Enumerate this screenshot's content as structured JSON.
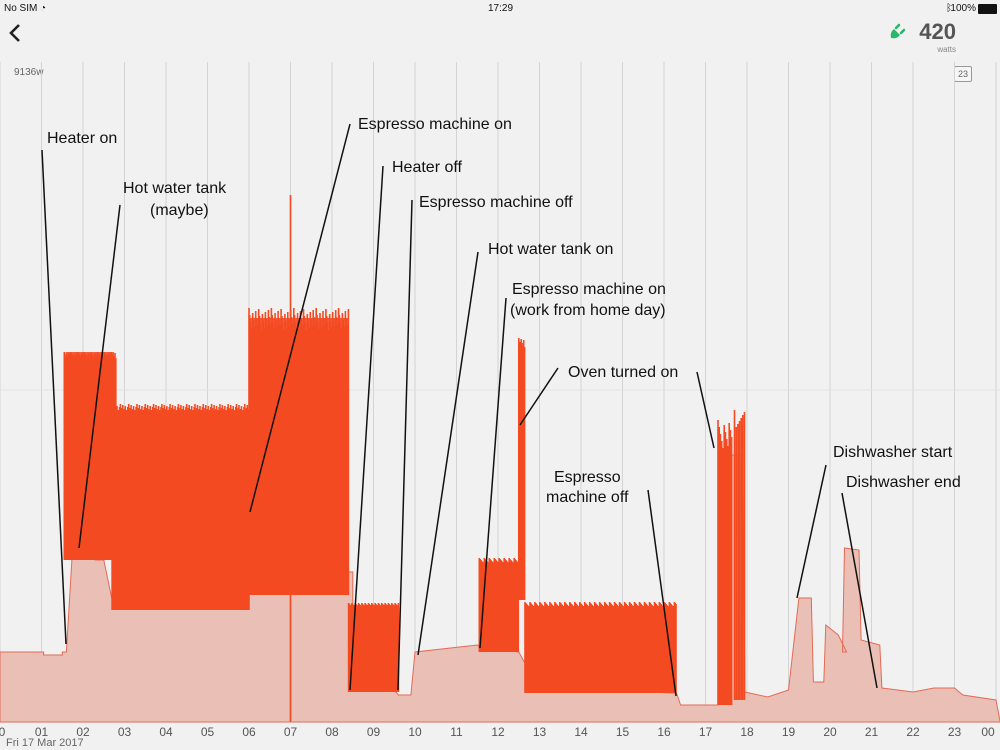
{
  "status_bar": {
    "carrier": "No SIM",
    "time": "17:29",
    "battery": "100%"
  },
  "header": {
    "back_icon": "chevron-left-icon",
    "plug_icon": "plug-icon",
    "current_watts": "420",
    "unit": "watts"
  },
  "badge": "23",
  "chart_data": {
    "type": "area",
    "date_label": "Fri 17  Mar 2017",
    "y_max_label": "9136w",
    "xlabel": "",
    "ylabel": "",
    "x_ticks": [
      "0",
      "01",
      "02",
      "03",
      "04",
      "05",
      "06",
      "07",
      "08",
      "09",
      "10",
      "11",
      "12",
      "13",
      "14",
      "15",
      "16",
      "17",
      "18",
      "19",
      "20",
      "21",
      "22",
      "23",
      "00"
    ],
    "colors": {
      "peak": "#f44a22",
      "base": "#eac0b6",
      "base_edge": "#e46a55",
      "grid": "#d4d4d4"
    },
    "annotations": [
      {
        "text": "Heater on",
        "hour": 1.6
      },
      {
        "text": "Hot water tank",
        "hour": 1.9
      },
      {
        "text": "(maybe)",
        "hour": 1.9
      },
      {
        "text": "Espresso machine on",
        "hour": 6.0
      },
      {
        "text": "Heater off",
        "hour": 8.45
      },
      {
        "text": "Espresso machine off",
        "hour": 9.6
      },
      {
        "text": "Hot water tank on",
        "hour": 10.05
      },
      {
        "text": "Espresso machine on",
        "hour": 11.6
      },
      {
        "text": "(work from home day)",
        "hour": 11.6
      },
      {
        "text": "Oven turned on",
        "hour": 17.25
      },
      {
        "text": "Espresso",
        "hour": 16.3
      },
      {
        "text": "machine off",
        "hour": 16.3
      },
      {
        "text": "Dishwasher start",
        "hour": 19.3
      },
      {
        "text": "Dishwasher end",
        "hour": 21.2
      }
    ]
  }
}
